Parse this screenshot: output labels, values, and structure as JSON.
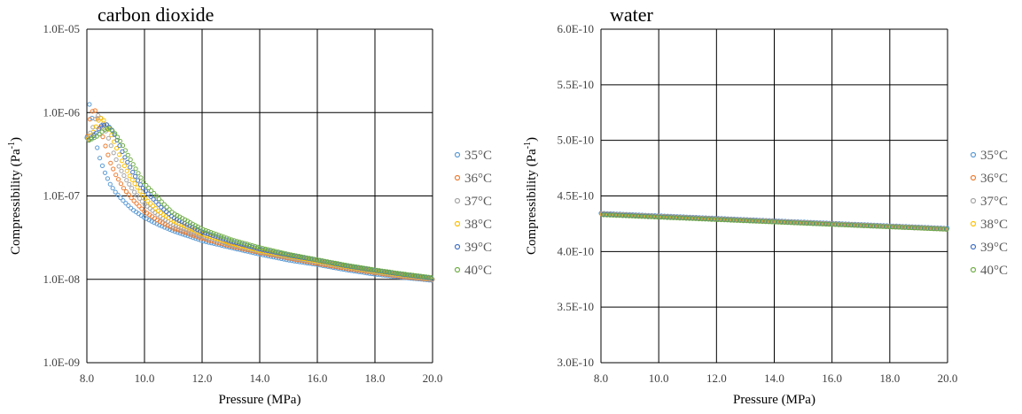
{
  "chart_data": [
    {
      "type": "scatter",
      "title": "carbon dioxide",
      "xlabel": "Pressure (MPa)",
      "ylabel_main": "Compressibility (Pa",
      "ylabel_sup": "-1",
      "ylabel_end": ")",
      "yscale": "log",
      "xlim": [
        8.0,
        20.0
      ],
      "ylim": [
        1e-09,
        1e-05
      ],
      "x_ticks": [
        "8.0",
        "10.0",
        "12.0",
        "14.0",
        "16.0",
        "18.0",
        "20.0"
      ],
      "y_ticks": [
        "1.0E-09",
        "1.0E-08",
        "1.0E-07",
        "1.0E-06",
        "1.0E-05"
      ],
      "grid": true,
      "legend_position": "right",
      "series": [
        {
          "name": "35°C",
          "color": "#5B9BD5",
          "points": [
            [
              8.0,
              5e-07
            ],
            [
              8.08,
              1.3e-06
            ],
            [
              8.15,
              1e-06
            ],
            [
              8.25,
              6e-07
            ],
            [
              8.4,
              3.2e-07
            ],
            [
              8.6,
              2e-07
            ],
            [
              8.8,
              1.4e-07
            ],
            [
              9.0,
              1.1e-07
            ],
            [
              9.3,
              8.5e-08
            ],
            [
              9.6,
              6.8e-08
            ],
            [
              10.0,
              5.5e-08
            ],
            [
              10.5,
              4.5e-08
            ],
            [
              11.0,
              3.8e-08
            ],
            [
              12.0,
              2.9e-08
            ],
            [
              13.0,
              2.4e-08
            ],
            [
              14.0,
              2e-08
            ],
            [
              15.0,
              1.7e-08
            ],
            [
              16.0,
              1.5e-08
            ],
            [
              17.0,
              1.3e-08
            ],
            [
              18.0,
              1.15e-08
            ],
            [
              19.0,
              1.05e-08
            ],
            [
              20.0,
              9.7e-09
            ]
          ]
        },
        {
          "name": "36°C",
          "color": "#ED7D31",
          "points": [
            [
              8.0,
              4.8e-07
            ],
            [
              8.12,
              9e-07
            ],
            [
              8.25,
              1.15e-06
            ],
            [
              8.4,
              8e-07
            ],
            [
              8.6,
              4.5e-07
            ],
            [
              8.8,
              2.6e-07
            ],
            [
              9.0,
              1.8e-07
            ],
            [
              9.3,
              1.2e-07
            ],
            [
              9.6,
              9e-08
            ],
            [
              10.0,
              6.5e-08
            ],
            [
              10.5,
              5e-08
            ],
            [
              11.0,
              4.1e-08
            ],
            [
              12.0,
              3.1e-08
            ],
            [
              13.0,
              2.5e-08
            ],
            [
              14.0,
              2.1e-08
            ],
            [
              15.0,
              1.8e-08
            ],
            [
              16.0,
              1.55e-08
            ],
            [
              17.0,
              1.35e-08
            ],
            [
              18.0,
              1.2e-08
            ],
            [
              19.0,
              1.07e-08
            ],
            [
              20.0,
              9.9e-09
            ]
          ]
        },
        {
          "name": "37°C",
          "color": "#A5A5A5",
          "points": [
            [
              8.0,
              4.7e-07
            ],
            [
              8.2,
              6.5e-07
            ],
            [
              8.35,
              9.5e-07
            ],
            [
              8.5,
              8.5e-07
            ],
            [
              8.7,
              5.5e-07
            ],
            [
              8.9,
              3.5e-07
            ],
            [
              9.1,
              2.3e-07
            ],
            [
              9.4,
              1.5e-07
            ],
            [
              9.7,
              1.05e-07
            ],
            [
              10.0,
              8e-08
            ],
            [
              10.5,
              5.8e-08
            ],
            [
              11.0,
              4.5e-08
            ],
            [
              12.0,
              3.3e-08
            ],
            [
              13.0,
              2.6e-08
            ],
            [
              14.0,
              2.15e-08
            ],
            [
              15.0,
              1.85e-08
            ],
            [
              16.0,
              1.6e-08
            ],
            [
              17.0,
              1.4e-08
            ],
            [
              18.0,
              1.22e-08
            ],
            [
              19.0,
              1.1e-08
            ],
            [
              20.0,
              1e-08
            ]
          ]
        },
        {
          "name": "38°C",
          "color": "#FFC000",
          "points": [
            [
              8.0,
              4.6e-07
            ],
            [
              8.25,
              6e-07
            ],
            [
              8.45,
              8.8e-07
            ],
            [
              8.6,
              8e-07
            ],
            [
              8.8,
              6e-07
            ],
            [
              9.0,
              4e-07
            ],
            [
              9.2,
              2.7e-07
            ],
            [
              9.5,
              1.7e-07
            ],
            [
              9.8,
              1.2e-07
            ],
            [
              10.0,
              9.5e-08
            ],
            [
              10.5,
              6.5e-08
            ],
            [
              11.0,
              5e-08
            ],
            [
              12.0,
              3.5e-08
            ],
            [
              13.0,
              2.7e-08
            ],
            [
              14.0,
              2.2e-08
            ],
            [
              15.0,
              1.9e-08
            ],
            [
              16.0,
              1.65e-08
            ],
            [
              17.0,
              1.42e-08
            ],
            [
              18.0,
              1.25e-08
            ],
            [
              19.0,
              1.12e-08
            ],
            [
              20.0,
              1.02e-08
            ]
          ]
        },
        {
          "name": "39°C",
          "color": "#4472C4",
          "points": [
            [
              8.0,
              4.5e-07
            ],
            [
              8.3,
              5.5e-07
            ],
            [
              8.5,
              7e-07
            ],
            [
              8.7,
              7.2e-07
            ],
            [
              8.9,
              6e-07
            ],
            [
              9.1,
              4.3e-07
            ],
            [
              9.3,
              3e-07
            ],
            [
              9.6,
              1.9e-07
            ],
            [
              9.9,
              1.3e-07
            ],
            [
              10.2,
              1e-07
            ],
            [
              10.6,
              7.2e-08
            ],
            [
              11.0,
              5.5e-08
            ],
            [
              12.0,
              3.7e-08
            ],
            [
              13.0,
              2.85e-08
            ],
            [
              14.0,
              2.3e-08
            ],
            [
              15.0,
              1.95e-08
            ],
            [
              16.0,
              1.7e-08
            ],
            [
              17.0,
              1.45e-08
            ],
            [
              18.0,
              1.28e-08
            ],
            [
              19.0,
              1.14e-08
            ],
            [
              20.0,
              1.03e-08
            ]
          ]
        },
        {
          "name": "40°C",
          "color": "#70AD47",
          "points": [
            [
              8.0,
              4.5e-07
            ],
            [
              8.35,
              5.2e-07
            ],
            [
              8.6,
              6.2e-07
            ],
            [
              8.8,
              6.5e-07
            ],
            [
              9.0,
              5.5e-07
            ],
            [
              9.2,
              4.3e-07
            ],
            [
              9.4,
              3.2e-07
            ],
            [
              9.7,
              2.1e-07
            ],
            [
              10.0,
              1.4e-07
            ],
            [
              10.3,
              1.1e-07
            ],
            [
              10.7,
              7.8e-08
            ],
            [
              11.0,
              6.2e-08
            ],
            [
              12.0,
              4e-08
            ],
            [
              13.0,
              3e-08
            ],
            [
              14.0,
              2.4e-08
            ],
            [
              15.0,
              2e-08
            ],
            [
              16.0,
              1.72e-08
            ],
            [
              17.0,
              1.48e-08
            ],
            [
              18.0,
              1.3e-08
            ],
            [
              19.0,
              1.16e-08
            ],
            [
              20.0,
              1.05e-08
            ]
          ]
        }
      ]
    },
    {
      "type": "scatter",
      "title": "water",
      "xlabel": "Pressure (MPa)",
      "ylabel_main": "Compressibility (Pa",
      "ylabel_sup": "-1",
      "ylabel_end": ")",
      "yscale": "linear",
      "xlim": [
        8.0,
        20.0
      ],
      "ylim": [
        3e-10,
        6e-10
      ],
      "x_ticks": [
        "8.0",
        "10.0",
        "12.0",
        "14.0",
        "16.0",
        "18.0",
        "20.0"
      ],
      "y_ticks": [
        "3.0E-10",
        "3.5E-10",
        "4.0E-10",
        "4.5E-10",
        "5.0E-10",
        "5.5E-10",
        "6.0E-10"
      ],
      "grid": true,
      "legend_position": "right",
      "series": [
        {
          "name": "35°C",
          "color": "#5B9BD5",
          "points": [
            [
              8.0,
              4.345e-10
            ],
            [
              20.0,
              4.21e-10
            ]
          ]
        },
        {
          "name": "36°C",
          "color": "#ED7D31",
          "points": [
            [
              8.0,
              4.34e-10
            ],
            [
              20.0,
              4.205e-10
            ]
          ]
        },
        {
          "name": "37°C",
          "color": "#A5A5A5",
          "points": [
            [
              8.0,
              4.34e-10
            ],
            [
              20.0,
              4.205e-10
            ]
          ]
        },
        {
          "name": "38°C",
          "color": "#FFC000",
          "points": [
            [
              8.0,
              4.335e-10
            ],
            [
              20.0,
              4.2e-10
            ]
          ]
        },
        {
          "name": "39°C",
          "color": "#4472C4",
          "points": [
            [
              8.0,
              4.335e-10
            ],
            [
              20.0,
              4.2e-10
            ]
          ]
        },
        {
          "name": "40°C",
          "color": "#70AD47",
          "points": [
            [
              8.0,
              4.33e-10
            ],
            [
              20.0,
              4.2e-10
            ]
          ]
        }
      ]
    }
  ]
}
